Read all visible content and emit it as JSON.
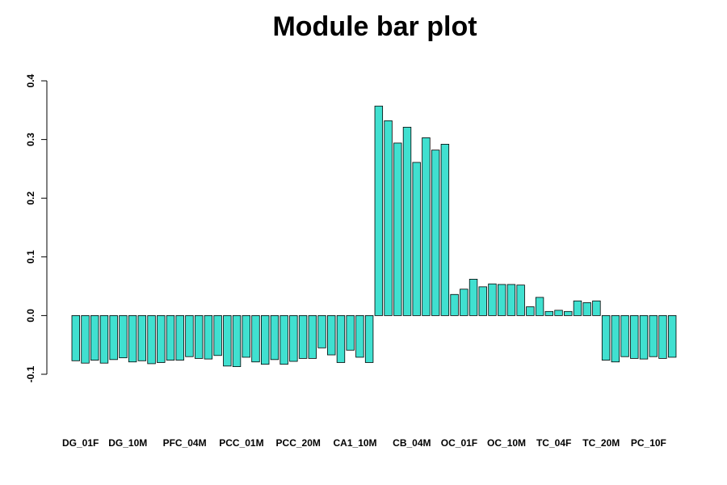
{
  "chart_data": {
    "type": "bar",
    "title": "Module bar plot",
    "xlabel": "",
    "ylabel": "",
    "ylim": [
      -0.1,
      0.4
    ],
    "yticks": [
      -0.1,
      0.0,
      0.1,
      0.2,
      0.3,
      0.4
    ],
    "bar_color": "#40E0D0",
    "bar_border_color": "#000000",
    "grid": false,
    "values": [
      -0.077,
      -0.081,
      -0.076,
      -0.081,
      -0.075,
      -0.072,
      -0.079,
      -0.077,
      -0.082,
      -0.08,
      -0.076,
      -0.076,
      -0.07,
      -0.073,
      -0.074,
      -0.068,
      -0.086,
      -0.087,
      -0.071,
      -0.079,
      -0.083,
      -0.075,
      -0.083,
      -0.078,
      -0.073,
      -0.073,
      -0.055,
      -0.067,
      -0.08,
      -0.059,
      -0.071,
      -0.08,
      0.357,
      0.332,
      0.294,
      0.321,
      0.261,
      0.303,
      0.282,
      0.292,
      0.036,
      0.045,
      0.062,
      0.049,
      0.054,
      0.053,
      0.053,
      0.052,
      0.015,
      0.031,
      0.007,
      0.009,
      0.007,
      0.025,
      0.022,
      0.025,
      -0.076,
      -0.079,
      -0.07,
      -0.073,
      -0.074,
      -0.07,
      -0.073,
      -0.071
    ],
    "tick_labels": [
      {
        "label": "DG_01F",
        "bar": 0.5
      },
      {
        "label": "DG_10M",
        "bar": 5.5
      },
      {
        "label": "PFC_04M",
        "bar": 11.5
      },
      {
        "label": "PCC_01M",
        "bar": 17.5
      },
      {
        "label": "PCC_20M",
        "bar": 23.5
      },
      {
        "label": "CA1_10M",
        "bar": 29.5
      },
      {
        "label": "CB_04M",
        "bar": 35.5
      },
      {
        "label": "OC_01F",
        "bar": 40.5
      },
      {
        "label": "OC_10M",
        "bar": 45.5
      },
      {
        "label": "TC_04F",
        "bar": 50.5
      },
      {
        "label": "TC_20M",
        "bar": 55.5
      },
      {
        "label": "PC_10F",
        "bar": 60.5
      }
    ]
  }
}
